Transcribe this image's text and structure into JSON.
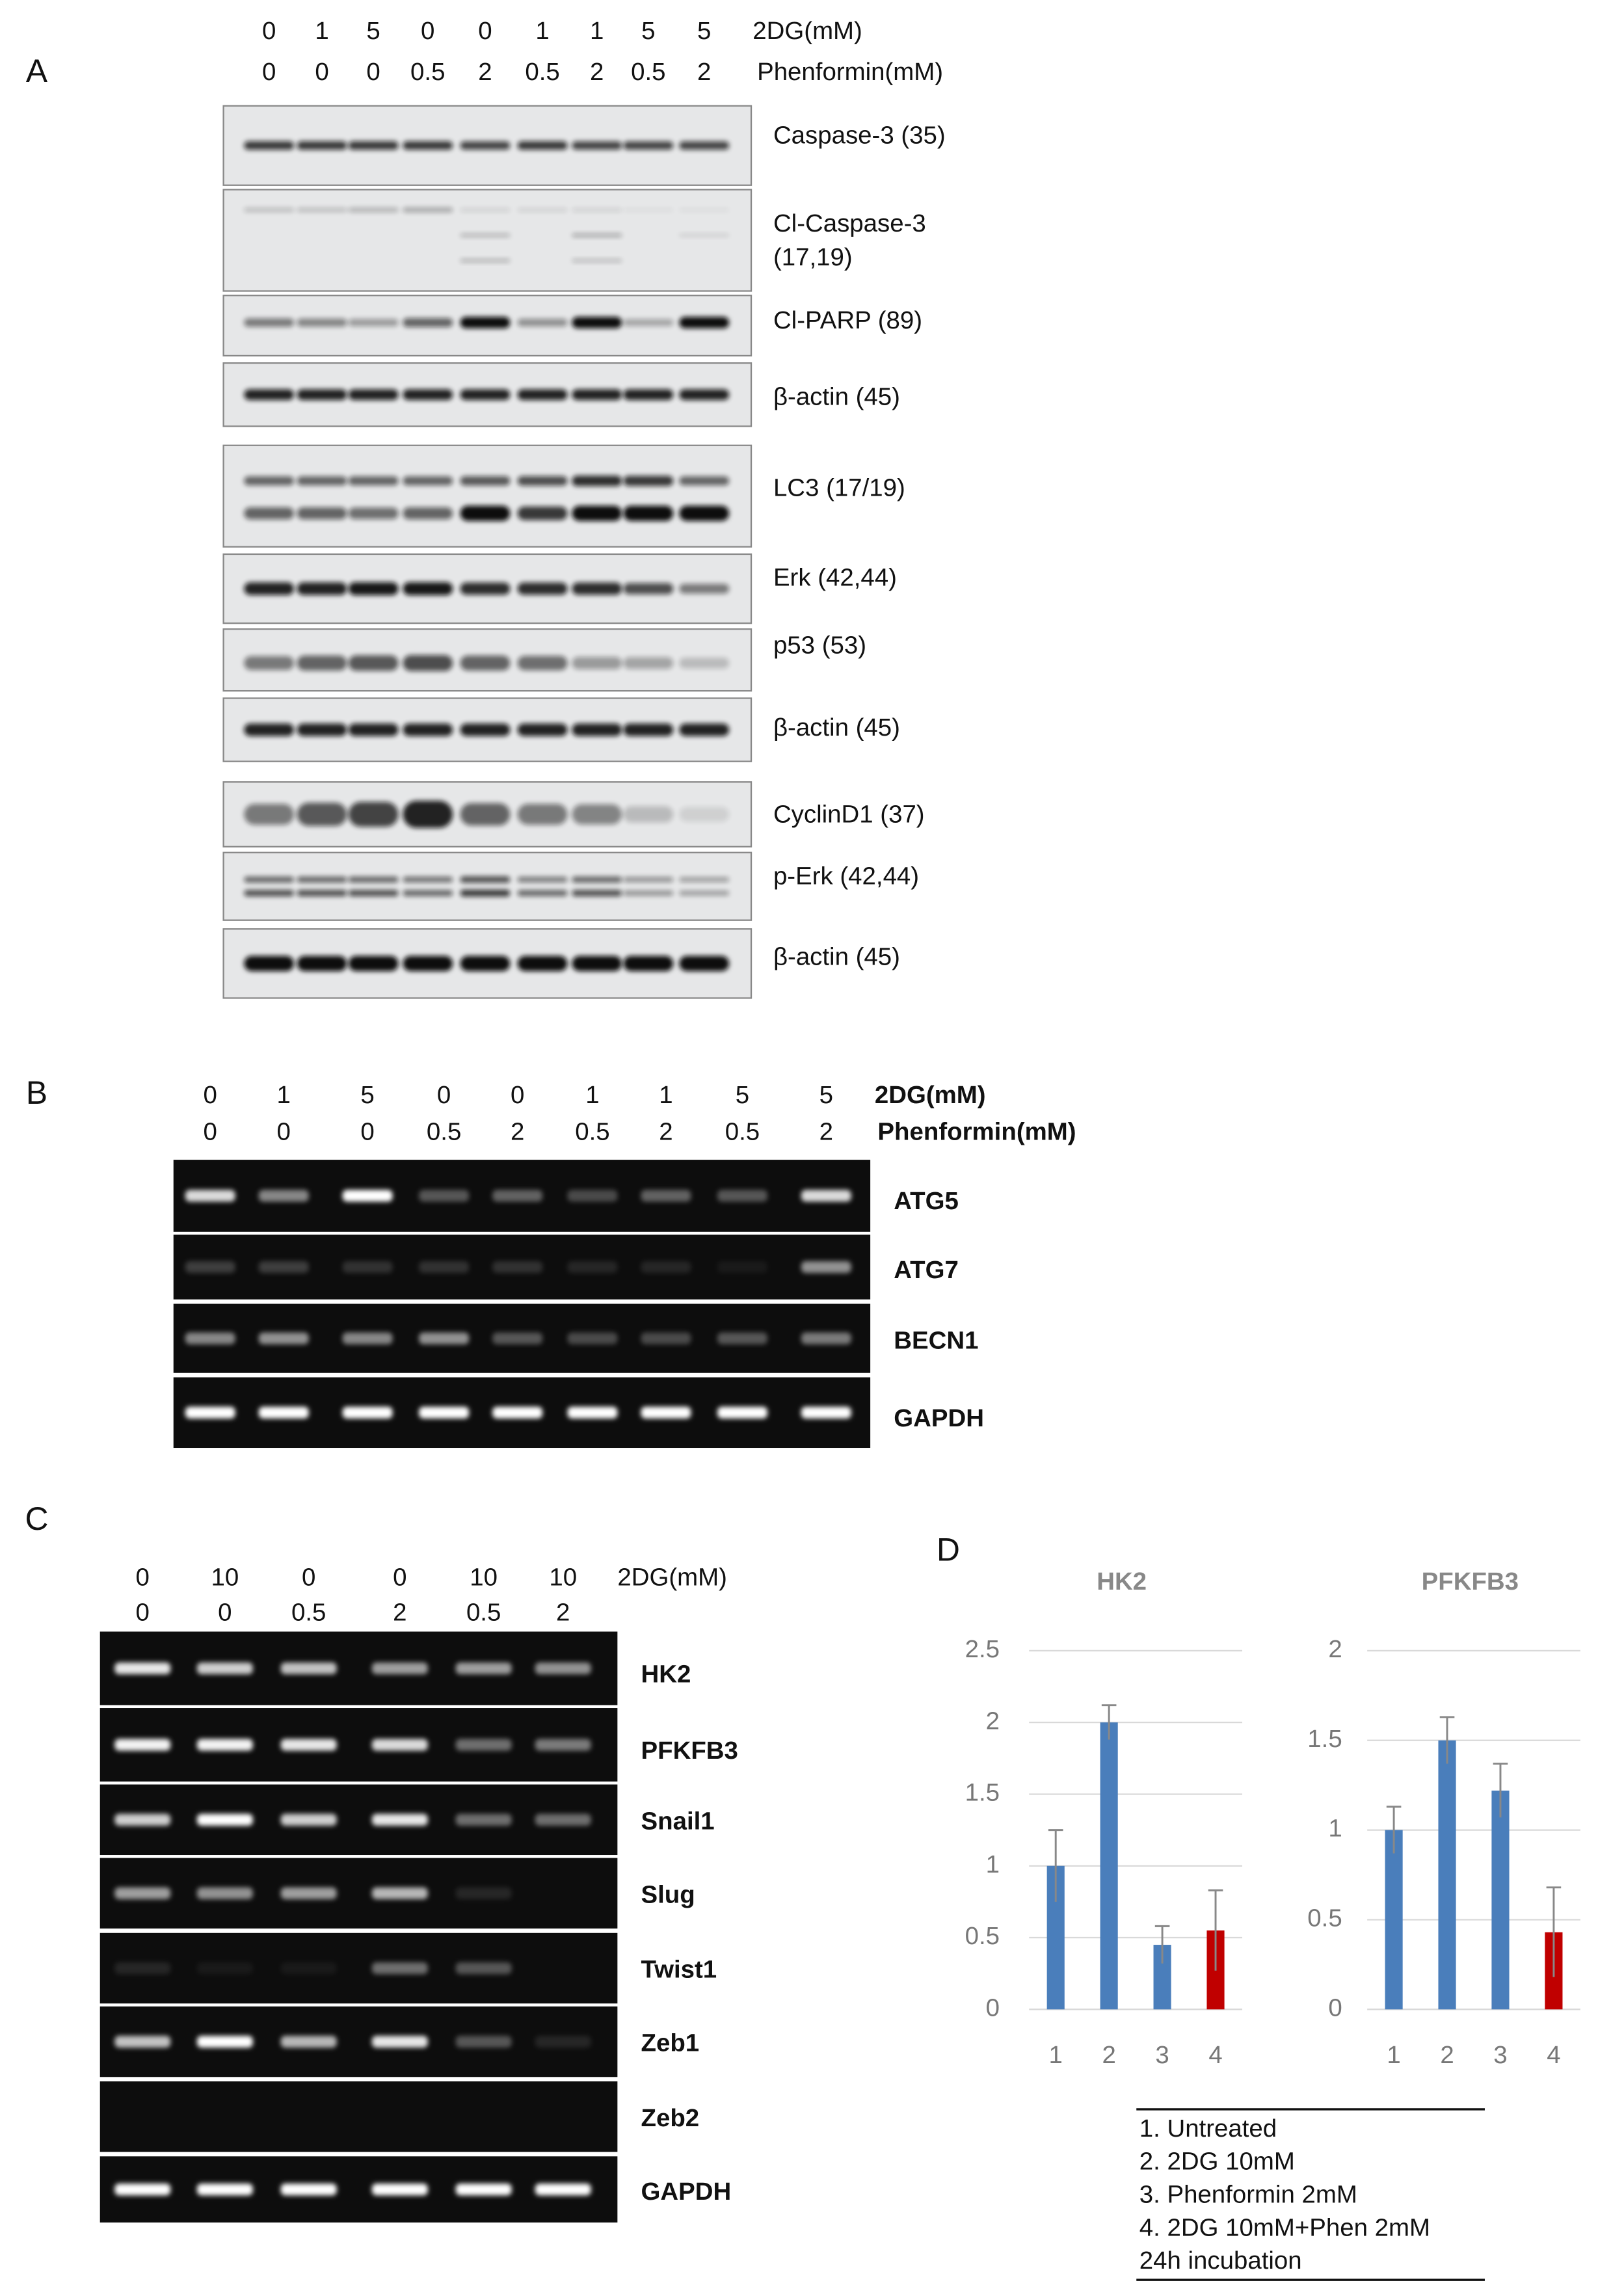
{
  "panel_a": {
    "label": "A",
    "lanes": [
      {
        "values": [
          "0",
          "1",
          "5",
          "0",
          "0",
          "1",
          "1",
          "5",
          "5"
        ],
        "label": "2DG(mM)"
      },
      {
        "values": [
          "0",
          "0",
          "0",
          "0.5",
          "2",
          "0.5",
          "2",
          "0.5",
          "2"
        ],
        "label": "Phenformin(mM)"
      }
    ],
    "blots": [
      {
        "label": "Caspase-3 (35)"
      },
      {
        "label": [
          "Cl-Caspase-3",
          "(17,19)"
        ]
      },
      {
        "label": "Cl-PARP (89)"
      },
      {
        "label": "β-actin (45)"
      },
      {
        "label": "LC3 (17/19)"
      },
      {
        "label": "Erk (42,44)"
      },
      {
        "label": "p53 (53)"
      },
      {
        "label": "β-actin (45)"
      },
      {
        "label": "CyclinD1 (37)"
      },
      {
        "label": "p-Erk (42,44)"
      },
      {
        "label": "β-actin (45)"
      }
    ]
  },
  "panel_b": {
    "label": "B",
    "lanes": [
      {
        "values": [
          "0",
          "1",
          "5",
          "0",
          "0",
          "1",
          "1",
          "5",
          "5"
        ],
        "label": "2DG(mM)"
      },
      {
        "values": [
          "0",
          "0",
          "0",
          "0.5",
          "2",
          "0.5",
          "2",
          "0.5",
          "2"
        ],
        "label": "Phenformin(mM)"
      }
    ],
    "gels": [
      {
        "label": "ATG5"
      },
      {
        "label": "ATG7"
      },
      {
        "label": "BECN1"
      },
      {
        "label": "GAPDH"
      }
    ]
  },
  "panel_c": {
    "label": "C",
    "lanes": [
      {
        "values": [
          "0",
          "10",
          "0",
          "0",
          "10",
          "10"
        ],
        "label": "2DG(mM)"
      },
      {
        "values": [
          "0",
          "0",
          "0.5",
          "2",
          "0.5",
          "2"
        ]
      }
    ],
    "gels": [
      {
        "label": "HK2"
      },
      {
        "label": "PFKFB3"
      },
      {
        "label": "Snail1"
      },
      {
        "label": "Slug"
      },
      {
        "label": "Twist1"
      },
      {
        "label": "Zeb1"
      },
      {
        "label": "Zeb2"
      },
      {
        "label": "GAPDH"
      }
    ]
  },
  "panel_d": {
    "label": "D",
    "legend": [
      "1. Untreated",
      "2. 2DG 10mM",
      "3. Phenformin 2mM",
      "4. 2DG 10mM+Phen 2mM",
      "24h incubation"
    ]
  },
  "chart_data": [
    {
      "type": "bar",
      "title": "HK2",
      "categories": [
        "1",
        "2",
        "3",
        "4"
      ],
      "series": [
        {
          "values": [
            1,
            2,
            0.45,
            0.55
          ],
          "errors": [
            0.25,
            0.12,
            0.13,
            0.28
          ],
          "colors": [
            "#4a7ebb",
            "#4a7ebb",
            "#4a7ebb",
            "#c00000"
          ]
        }
      ],
      "ylim": [
        0,
        2.5
      ],
      "yticks": [
        0,
        0.5,
        1,
        1.5,
        2,
        2.5
      ],
      "grid": true
    },
    {
      "type": "bar",
      "title": "PFKFB3",
      "categories": [
        "1",
        "2",
        "3",
        "4"
      ],
      "series": [
        {
          "values": [
            1,
            1.5,
            1.22,
            0.43
          ],
          "errors": [
            0.13,
            0.13,
            0.15,
            0.25
          ],
          "colors": [
            "#4a7ebb",
            "#4a7ebb",
            "#4a7ebb",
            "#c00000"
          ]
        }
      ],
      "ylim": [
        0,
        2
      ],
      "yticks": [
        0,
        0.5,
        1,
        1.5,
        2
      ],
      "grid": true
    }
  ]
}
